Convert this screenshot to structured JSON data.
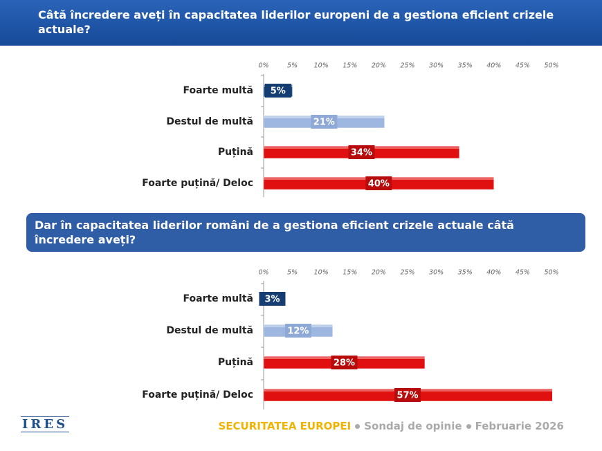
{
  "chart_data": [
    {
      "type": "bar",
      "orientation": "horizontal",
      "title": "Câtă încredere aveți în capacitatea liderilor europeni de a gestiona eficient crizele actuale?",
      "categories": [
        "Foarte multă",
        "Destul de multă",
        "Puțină",
        "Foarte puțină/ Deloc"
      ],
      "values": [
        5,
        21,
        34,
        40
      ],
      "value_labels": [
        "5%",
        "21%",
        "34%",
        "40%"
      ],
      "colors": [
        "#1f4e8c",
        "#9db7e0",
        "#e01010",
        "#e01010"
      ],
      "xlim": [
        0,
        50
      ],
      "xticks": [
        {
          "value": 0,
          "label": "0%"
        },
        {
          "value": 5,
          "label": "5%"
        },
        {
          "value": 10,
          "label": "10%"
        },
        {
          "value": 15,
          "label": "15%"
        },
        {
          "value": 20,
          "label": "20%"
        },
        {
          "value": 25,
          "label": "25%"
        },
        {
          "value": 30,
          "label": "30%"
        },
        {
          "value": 35,
          "label": "35%"
        },
        {
          "value": 40,
          "label": "40%"
        },
        {
          "value": 45,
          "label": "45%"
        },
        {
          "value": 50,
          "label": "50%"
        }
      ],
      "grid": false
    },
    {
      "type": "bar",
      "orientation": "horizontal",
      "title": "Dar în capacitatea liderilor români de a gestiona eficient crizele actuale câtă încredere aveți?",
      "categories": [
        "Foarte multă",
        "Destul de multă",
        "Puțină",
        "Foarte puțină/ Deloc"
      ],
      "values": [
        3,
        12,
        28,
        57
      ],
      "value_labels": [
        "3%",
        "12%",
        "28%",
        "57%"
      ],
      "colors": [
        "#1f4e8c",
        "#9db7e0",
        "#e01010",
        "#e01010"
      ],
      "xlim": [
        0,
        50
      ],
      "xticks": [
        {
          "value": 0,
          "label": "0%"
        },
        {
          "value": 5,
          "label": "5%"
        },
        {
          "value": 10,
          "label": "10%"
        },
        {
          "value": 15,
          "label": "15%"
        },
        {
          "value": 20,
          "label": "20%"
        },
        {
          "value": 25,
          "label": "25%"
        },
        {
          "value": 30,
          "label": "30%"
        },
        {
          "value": 35,
          "label": "35%"
        },
        {
          "value": 40,
          "label": "40%"
        },
        {
          "value": 45,
          "label": "45%"
        },
        {
          "value": 50,
          "label": "50%"
        }
      ],
      "grid": false
    }
  ],
  "footer": {
    "logo": "IRES",
    "survey": "SECURITATEA EUROPEI",
    "method": "Sondaj de opinie",
    "date": "Februarie 2026"
  }
}
